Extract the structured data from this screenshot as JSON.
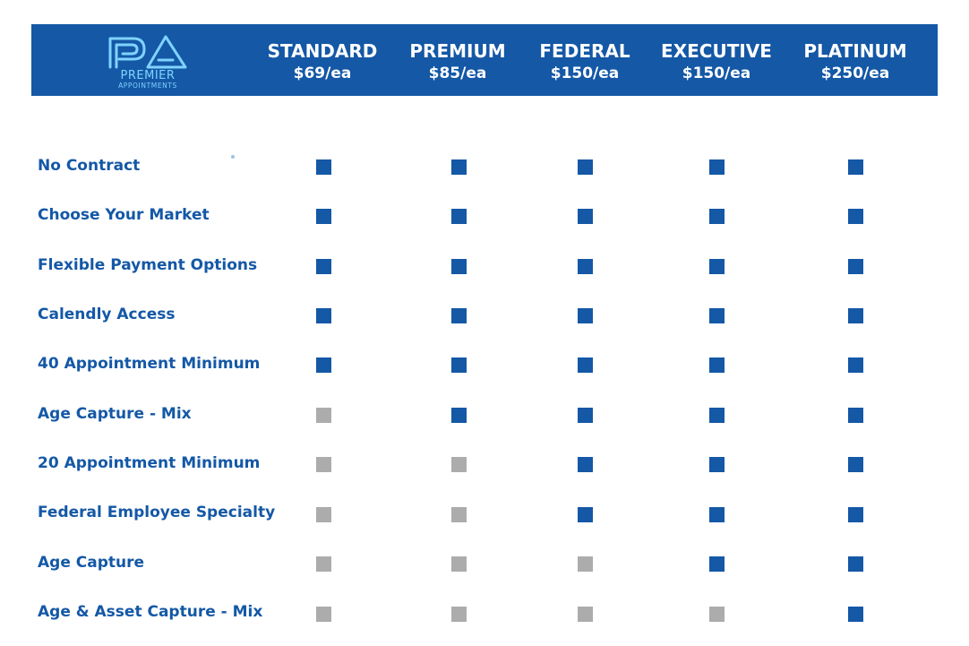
{
  "logo": {
    "monogram": "PA",
    "name": "PREMIER",
    "tagline": "APPOINTMENTS",
    "color": "#7fd3ff"
  },
  "colors": {
    "header_bg": "#1458a6",
    "included": "#1458a6",
    "not_included": "#acacac",
    "label_text": "#1458a6"
  },
  "plans": [
    {
      "name": "STANDARD",
      "price": "$69/ea"
    },
    {
      "name": "PREMIUM",
      "price": "$85/ea"
    },
    {
      "name": "FEDERAL",
      "price": "$150/ea"
    },
    {
      "name": "EXECUTIVE",
      "price": "$150/ea"
    },
    {
      "name": "PLATINUM",
      "price": "$250/ea"
    }
  ],
  "features": [
    {
      "label": "No Contract",
      "included": [
        true,
        true,
        true,
        true,
        true
      ]
    },
    {
      "label": "Choose Your Market",
      "included": [
        true,
        true,
        true,
        true,
        true
      ]
    },
    {
      "label": "Flexible Payment Options",
      "included": [
        true,
        true,
        true,
        true,
        true
      ]
    },
    {
      "label": "Calendly Access",
      "included": [
        true,
        true,
        true,
        true,
        true
      ]
    },
    {
      "label": "40 Appointment Minimum",
      "included": [
        true,
        true,
        true,
        true,
        true
      ]
    },
    {
      "label": "Age Capture - Mix",
      "included": [
        false,
        true,
        true,
        true,
        true
      ]
    },
    {
      "label": "20 Appointment Minimum",
      "included": [
        false,
        false,
        true,
        true,
        true
      ]
    },
    {
      "label": "Federal Employee Specialty",
      "included": [
        false,
        false,
        true,
        true,
        true
      ]
    },
    {
      "label": "Age Capture",
      "included": [
        false,
        false,
        false,
        true,
        true
      ]
    },
    {
      "label": "Age & Asset Capture - Mix",
      "included": [
        false,
        false,
        false,
        false,
        true
      ]
    }
  ]
}
